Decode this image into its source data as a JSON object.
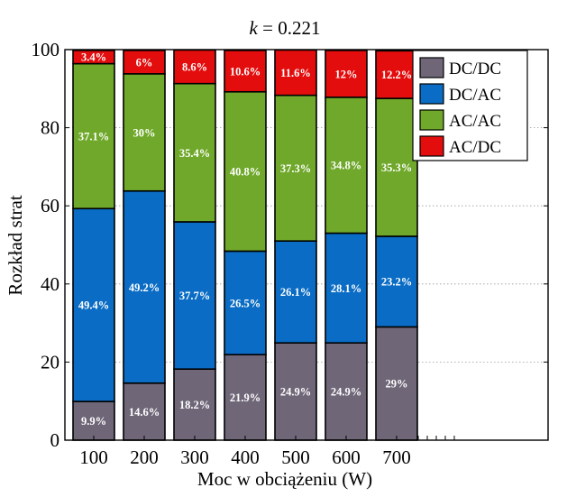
{
  "chart_data": {
    "type": "bar",
    "stacked": true,
    "title_var": "k",
    "title_rest": " = 0.221",
    "xlabel": "Moc w obciążeniu (W)",
    "ylabel": "Rozkład strat",
    "categories": [
      "100",
      "200",
      "300",
      "400",
      "500",
      "600",
      "700"
    ],
    "ylim": [
      0,
      100
    ],
    "yticks": [
      0,
      20,
      40,
      60,
      80,
      100
    ],
    "grid": "dotted, y-axis",
    "legend_position": "top-right",
    "series": [
      {
        "name": "DC/DC",
        "color": "#6f6678",
        "values": [
          9.9,
          14.6,
          18.2,
          21.9,
          24.9,
          24.9,
          29
        ],
        "labels": [
          "9.9%",
          "14.6%",
          "18.2%",
          "21.9%",
          "24.9%",
          "24.9%",
          "29%"
        ]
      },
      {
        "name": "DC/AC",
        "color": "#0a6cc4",
        "values": [
          49.4,
          49.2,
          37.7,
          26.5,
          26.1,
          28.1,
          23.2
        ],
        "labels": [
          "49.4%",
          "49.2%",
          "37.7%",
          "26.5%",
          "26.1%",
          "28.1%",
          "23.2%"
        ]
      },
      {
        "name": "AC/AC",
        "color": "#6fa82a",
        "values": [
          37.1,
          30,
          35.4,
          40.8,
          37.3,
          34.8,
          35.3
        ],
        "labels": [
          "37.1%",
          "30%",
          "35.4%",
          "40.8%",
          "37.3%",
          "34.8%",
          "35.3%"
        ]
      },
      {
        "name": "AC/DC",
        "color": "#e30d0d",
        "values": [
          3.4,
          6,
          8.6,
          10.6,
          11.6,
          12,
          12.2
        ],
        "labels": [
          "3.4%",
          "6%",
          "8.6%",
          "10.6%",
          "11.6%",
          "12%",
          "12.2%"
        ]
      }
    ]
  }
}
